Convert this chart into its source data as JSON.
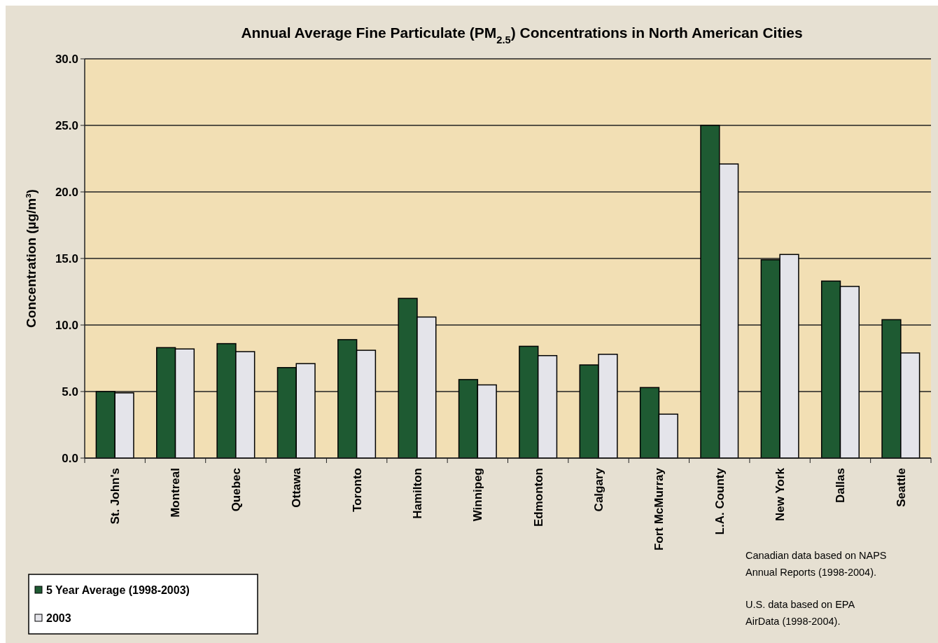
{
  "chart_data": {
    "type": "bar",
    "title": "Annual Average Fine Particulate (PM$_{2.5}$) Concentrations in North American Cities",
    "ylabel": "Concentration (µg/m³)",
    "categories": [
      "St. John's",
      "Montreal",
      "Quebec",
      "Ottawa",
      "Toronto",
      "Hamilton",
      "Winnipeg",
      "Edmonton",
      "Calgary",
      "Fort McMurray",
      "L.A. County",
      "New York",
      "Dallas",
      "Seattle"
    ],
    "series": [
      {
        "name": "5 Year Average (1998-2003)",
        "color": "#1e5a32",
        "values": [
          5.0,
          8.3,
          8.6,
          6.8,
          8.9,
          12.0,
          5.9,
          8.4,
          7.0,
          5.3,
          25.0,
          14.9,
          13.3,
          10.4
        ]
      },
      {
        "name": "2003",
        "color": "#e4e4ea",
        "values": [
          4.9,
          8.2,
          8.0,
          7.1,
          8.1,
          10.6,
          5.5,
          7.7,
          7.8,
          3.3,
          22.1,
          15.3,
          12.9,
          7.9
        ]
      }
    ],
    "ylim": [
      0,
      30
    ],
    "yticks": [
      {
        "value": 0,
        "label": "0.0"
      },
      {
        "value": 5,
        "label": "5.0"
      },
      {
        "value": 10,
        "label": "10.0"
      },
      {
        "value": 15,
        "label": "15.0"
      },
      {
        "value": 20,
        "label": "20.0"
      },
      {
        "value": 25,
        "label": "25.0"
      },
      {
        "value": 30,
        "label": "30.0"
      }
    ],
    "grid": "y",
    "legend": "bottom left",
    "annotations": [
      "Canadian data based on NAPS Annual Reports (1998-2004).",
      "U.S. data based on EPA AirData (1998-2004)."
    ]
  }
}
